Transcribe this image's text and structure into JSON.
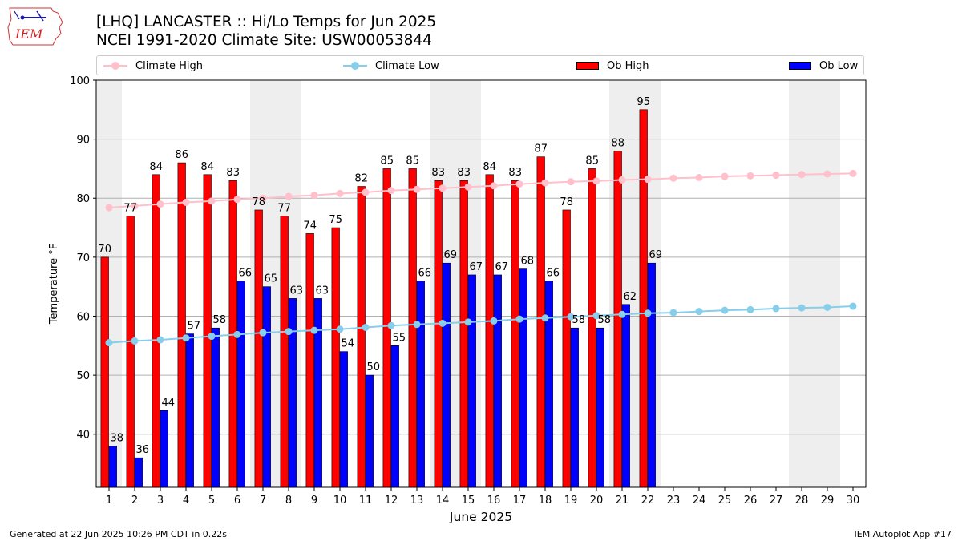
{
  "header": {
    "title_line1": "[LHQ] LANCASTER :: Hi/Lo Temps for Jun 2025",
    "title_line2": "NCEI 1991-2020 Climate Site: USW00053844",
    "logo_text": "IEM"
  },
  "legend": {
    "climate_high": "Climate High",
    "climate_low": "Climate Low",
    "ob_high": "Ob High",
    "ob_low": "Ob Low"
  },
  "footer": {
    "generated": "Generated at 22 Jun 2025 10:26 PM CDT in 0.22s",
    "app": "IEM Autoplot App #17"
  },
  "colors": {
    "climate_high": "#ffc0cb",
    "climate_low": "#87ceeb",
    "ob_high": "#ff0000",
    "ob_low": "#0000ff",
    "weekend_shade": "#eeeeee",
    "grid": "#b0b0b0"
  },
  "chart_data": {
    "type": "bar",
    "xlabel": "June 2025",
    "ylabel": "Temperature °F",
    "ylim": [
      31,
      100
    ],
    "yticks": [
      40,
      50,
      60,
      70,
      80,
      90,
      100
    ],
    "grid": "horizontal",
    "legend_position": "top",
    "days": [
      1,
      2,
      3,
      4,
      5,
      6,
      7,
      8,
      9,
      10,
      11,
      12,
      13,
      14,
      15,
      16,
      17,
      18,
      19,
      20,
      21,
      22,
      23,
      24,
      25,
      26,
      27,
      28,
      29,
      30
    ],
    "weekend_days": [
      1,
      7,
      8,
      14,
      15,
      21,
      22,
      28,
      29
    ],
    "series": [
      {
        "name": "Ob High",
        "kind": "bar",
        "values": [
          70,
          77,
          84,
          86,
          84,
          83,
          78,
          77,
          74,
          75,
          82,
          85,
          85,
          83,
          83,
          84,
          83,
          87,
          78,
          85,
          88,
          95
        ]
      },
      {
        "name": "Ob Low",
        "kind": "bar",
        "values": [
          38,
          36,
          44,
          57,
          58,
          66,
          65,
          63,
          63,
          54,
          50,
          55,
          66,
          69,
          67,
          67,
          68,
          66,
          58,
          58,
          62,
          69
        ]
      },
      {
        "name": "Climate High",
        "kind": "line",
        "values": [
          78.4,
          78.7,
          79.0,
          79.3,
          79.5,
          79.8,
          80.0,
          80.3,
          80.5,
          80.8,
          81.0,
          81.3,
          81.5,
          81.7,
          81.9,
          82.1,
          82.4,
          82.6,
          82.8,
          82.9,
          83.1,
          83.2,
          83.4,
          83.5,
          83.7,
          83.8,
          83.9,
          84.0,
          84.1,
          84.2
        ]
      },
      {
        "name": "Climate Low",
        "kind": "line",
        "values": [
          55.5,
          55.8,
          56.0,
          56.3,
          56.6,
          56.9,
          57.2,
          57.4,
          57.6,
          57.8,
          58.1,
          58.4,
          58.6,
          58.8,
          59.0,
          59.2,
          59.5,
          59.7,
          59.9,
          60.1,
          60.3,
          60.5,
          60.6,
          60.8,
          61.0,
          61.1,
          61.3,
          61.4,
          61.5,
          61.7
        ]
      }
    ]
  }
}
